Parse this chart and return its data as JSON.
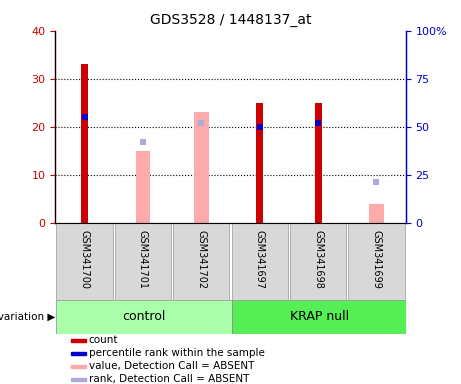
{
  "title": "GDS3528 / 1448137_at",
  "samples": [
    "GSM341700",
    "GSM341701",
    "GSM341702",
    "GSM341697",
    "GSM341698",
    "GSM341699"
  ],
  "count": [
    33,
    0,
    0,
    25,
    25,
    0
  ],
  "percentile_rank": [
    55,
    0,
    0,
    50,
    52,
    0
  ],
  "value_absent": [
    0,
    15,
    23,
    0,
    0,
    4
  ],
  "rank_absent": [
    0,
    42,
    52,
    0,
    0,
    21
  ],
  "groups": [
    {
      "label": "control",
      "start": 0,
      "end": 3
    },
    {
      "label": "KRAP null",
      "start": 3,
      "end": 6
    }
  ],
  "ylim_left": [
    0,
    40
  ],
  "ylim_right": [
    0,
    100
  ],
  "yticks_left": [
    0,
    10,
    20,
    30,
    40
  ],
  "ytick_labels_left": [
    "0",
    "10",
    "20",
    "30",
    "40"
  ],
  "yticks_right": [
    0,
    25,
    50,
    75,
    100
  ],
  "ytick_labels_right": [
    "0",
    "25",
    "50",
    "75",
    "100%"
  ],
  "color_count": "#cc0000",
  "color_percentile": "#0000cc",
  "color_value_absent": "#ffaaaa",
  "color_rank_absent": "#aaaadd",
  "color_bg": "#d8d8d8",
  "group_color_control": "#aaffaa",
  "group_color_krap": "#55ee55",
  "legend_items": [
    {
      "color": "#cc0000",
      "label": "count"
    },
    {
      "color": "#0000cc",
      "label": "percentile rank within the sample"
    },
    {
      "color": "#ffaaaa",
      "label": "value, Detection Call = ABSENT"
    },
    {
      "color": "#aaaadd",
      "label": "rank, Detection Call = ABSENT"
    }
  ]
}
